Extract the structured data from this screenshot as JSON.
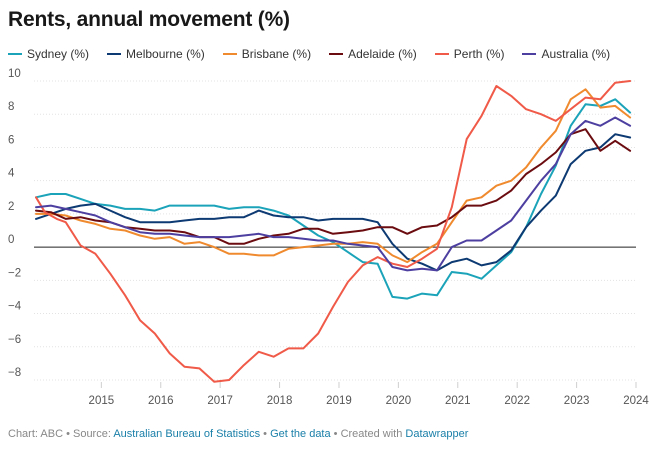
{
  "title": "Rents, annual movement (%)",
  "footer": {
    "chart_prefix": "Chart: ABC • Source: ",
    "source": "Australian Bureau of Statistics",
    "sep1": " • ",
    "get_data": "Get the data",
    "sep2": " • Created with ",
    "tool": "Datawrapper"
  },
  "chart_data": {
    "type": "line",
    "title": "Rents, annual movement (%)",
    "xlabel": "",
    "ylabel": "",
    "x_ticks": [
      "2015",
      "2016",
      "2017",
      "2018",
      "2019",
      "2020",
      "2021",
      "2022",
      "2023",
      "2024"
    ],
    "y_ticks": [
      "10",
      "8",
      "6",
      "4",
      "2",
      "0",
      "−2",
      "−4",
      "−6",
      "−8"
    ],
    "ylim": [
      -8,
      10
    ],
    "xlim": [
      2014.4,
      2024.5
    ],
    "grid": true,
    "legend_position": "top",
    "series": [
      {
        "name": "Sydney (%)",
        "color": "#1ba3b9",
        "x": [
          2014.4,
          2014.65,
          2014.9,
          2015.15,
          2015.4,
          2015.65,
          2015.9,
          2016.15,
          2016.4,
          2016.65,
          2016.9,
          2017.15,
          2017.4,
          2017.65,
          2017.9,
          2018.15,
          2018.4,
          2018.65,
          2018.9,
          2019.15,
          2019.4,
          2019.65,
          2019.9,
          2020.15,
          2020.4,
          2020.65,
          2020.9,
          2021.15,
          2021.4,
          2021.65,
          2021.9,
          2022.15,
          2022.4,
          2022.65,
          2022.9,
          2023.15,
          2023.4,
          2023.65,
          2023.9,
          2024.15,
          2024.4
        ],
        "values": [
          3.0,
          3.2,
          3.2,
          2.9,
          2.6,
          2.5,
          2.3,
          2.3,
          2.2,
          2.5,
          2.5,
          2.5,
          2.5,
          2.3,
          2.4,
          2.4,
          2.2,
          1.9,
          1.3,
          0.7,
          0.3,
          -0.3,
          -0.9,
          -1.0,
          -3.0,
          -3.1,
          -2.8,
          -2.9,
          -1.5,
          -1.6,
          -1.9,
          -1.1,
          -0.3,
          1.2,
          3.2,
          4.9,
          7.3,
          8.6,
          8.5,
          8.9,
          8.1
        ]
      },
      {
        "name": "Melbourne (%)",
        "color": "#0d3a72",
        "x": [
          2014.4,
          2014.65,
          2014.9,
          2015.15,
          2015.4,
          2015.65,
          2015.9,
          2016.15,
          2016.4,
          2016.65,
          2016.9,
          2017.15,
          2017.4,
          2017.65,
          2017.9,
          2018.15,
          2018.4,
          2018.65,
          2018.9,
          2019.15,
          2019.4,
          2019.65,
          2019.9,
          2020.15,
          2020.4,
          2020.65,
          2020.9,
          2021.15,
          2021.4,
          2021.65,
          2021.9,
          2022.15,
          2022.4,
          2022.65,
          2022.9,
          2023.15,
          2023.4,
          2023.65,
          2023.9,
          2024.15,
          2024.4
        ],
        "values": [
          1.7,
          2.0,
          2.3,
          2.5,
          2.6,
          2.2,
          1.8,
          1.5,
          1.5,
          1.5,
          1.6,
          1.7,
          1.7,
          1.8,
          1.8,
          2.2,
          1.9,
          1.8,
          1.8,
          1.6,
          1.7,
          1.7,
          1.7,
          1.5,
          0.2,
          -0.7,
          -1.0,
          -1.4,
          -0.9,
          -0.7,
          -1.1,
          -0.9,
          -0.2,
          1.2,
          2.2,
          3.1,
          5.0,
          5.8,
          6.0,
          6.8,
          6.6
        ]
      },
      {
        "name": "Brisbane (%)",
        "color": "#f08a2e",
        "x": [
          2014.4,
          2014.65,
          2014.9,
          2015.15,
          2015.4,
          2015.65,
          2015.9,
          2016.15,
          2016.4,
          2016.65,
          2016.9,
          2017.15,
          2017.4,
          2017.65,
          2017.9,
          2018.15,
          2018.4,
          2018.65,
          2018.9,
          2019.15,
          2019.4,
          2019.65,
          2019.9,
          2020.15,
          2020.4,
          2020.65,
          2020.9,
          2021.15,
          2021.4,
          2021.65,
          2021.9,
          2022.15,
          2022.4,
          2022.65,
          2022.9,
          2023.15,
          2023.4,
          2023.65,
          2023.9,
          2024.15,
          2024.4
        ],
        "values": [
          2.0,
          2.0,
          1.9,
          1.6,
          1.4,
          1.1,
          1.0,
          0.7,
          0.5,
          0.6,
          0.2,
          0.3,
          0.0,
          -0.4,
          -0.4,
          -0.5,
          -0.5,
          -0.1,
          0.0,
          0.1,
          0.2,
          0.2,
          0.3,
          0.2,
          -0.5,
          -0.9,
          -0.3,
          0.2,
          1.5,
          2.8,
          3.0,
          3.7,
          4.0,
          4.8,
          6.0,
          7.0,
          8.9,
          9.5,
          8.4,
          8.5,
          7.8
        ]
      },
      {
        "name": "Adelaide (%)",
        "color": "#6b0c10",
        "x": [
          2014.4,
          2014.65,
          2014.9,
          2015.15,
          2015.4,
          2015.65,
          2015.9,
          2016.15,
          2016.4,
          2016.65,
          2016.9,
          2017.15,
          2017.4,
          2017.65,
          2017.9,
          2018.15,
          2018.4,
          2018.65,
          2018.9,
          2019.15,
          2019.4,
          2019.65,
          2019.9,
          2020.15,
          2020.4,
          2020.65,
          2020.9,
          2021.15,
          2021.4,
          2021.65,
          2021.9,
          2022.15,
          2022.4,
          2022.65,
          2022.9,
          2023.15,
          2023.4,
          2023.65,
          2023.9,
          2024.15,
          2024.4
        ],
        "values": [
          2.2,
          2.1,
          1.7,
          1.8,
          1.6,
          1.5,
          1.2,
          1.1,
          1.0,
          1.0,
          0.9,
          0.6,
          0.6,
          0.2,
          0.2,
          0.5,
          0.7,
          0.8,
          1.1,
          1.1,
          0.8,
          0.9,
          1.0,
          1.2,
          1.2,
          0.8,
          1.2,
          1.3,
          1.8,
          2.5,
          2.5,
          2.8,
          3.4,
          4.4,
          5.0,
          5.7,
          6.8,
          7.1,
          5.8,
          6.4,
          5.8
        ]
      },
      {
        "name": "Perth (%)",
        "color": "#f05a48",
        "x": [
          2014.4,
          2014.55,
          2014.75,
          2014.9,
          2015.15,
          2015.4,
          2015.65,
          2015.9,
          2016.15,
          2016.4,
          2016.65,
          2016.9,
          2017.15,
          2017.4,
          2017.65,
          2017.9,
          2018.15,
          2018.4,
          2018.65,
          2018.9,
          2019.15,
          2019.4,
          2019.65,
          2019.9,
          2020.15,
          2020.4,
          2020.65,
          2020.9,
          2021.15,
          2021.4,
          2021.65,
          2021.9,
          2022.15,
          2022.4,
          2022.65,
          2022.9,
          2023.15,
          2023.4,
          2023.65,
          2023.9,
          2024.15,
          2024.4
        ],
        "values": [
          3.0,
          2.1,
          1.7,
          1.5,
          0.1,
          -0.4,
          -1.6,
          -2.9,
          -4.4,
          -5.2,
          -6.4,
          -7.2,
          -7.3,
          -8.1,
          -8.0,
          -7.1,
          -6.3,
          -6.6,
          -6.1,
          -6.1,
          -5.2,
          -3.6,
          -2.1,
          -1.1,
          -0.6,
          -1.0,
          -1.2,
          -0.7,
          -0.1,
          2.4,
          6.5,
          7.9,
          9.7,
          9.1,
          8.3,
          8.0,
          7.6,
          8.3,
          9.0,
          8.9,
          9.9,
          10.0
        ]
      },
      {
        "name": "Australia (%)",
        "color": "#4d3fa0",
        "x": [
          2014.4,
          2014.65,
          2014.9,
          2015.15,
          2015.4,
          2015.65,
          2015.9,
          2016.15,
          2016.4,
          2016.65,
          2016.9,
          2017.15,
          2017.4,
          2017.65,
          2017.9,
          2018.15,
          2018.4,
          2018.65,
          2018.9,
          2019.15,
          2019.4,
          2019.65,
          2019.9,
          2020.15,
          2020.4,
          2020.65,
          2020.9,
          2021.15,
          2021.4,
          2021.65,
          2021.9,
          2022.15,
          2022.4,
          2022.65,
          2022.9,
          2023.15,
          2023.4,
          2023.65,
          2023.9,
          2024.15,
          2024.4
        ],
        "values": [
          2.4,
          2.5,
          2.3,
          2.1,
          1.9,
          1.5,
          1.2,
          0.9,
          0.8,
          0.8,
          0.7,
          0.6,
          0.6,
          0.6,
          0.7,
          0.8,
          0.6,
          0.6,
          0.5,
          0.4,
          0.4,
          0.2,
          0.1,
          0.0,
          -1.2,
          -1.4,
          -1.3,
          -1.4,
          0.0,
          0.4,
          0.4,
          1.0,
          1.6,
          2.8,
          4.0,
          5.0,
          6.8,
          7.6,
          7.3,
          7.8,
          7.3
        ]
      }
    ]
  }
}
